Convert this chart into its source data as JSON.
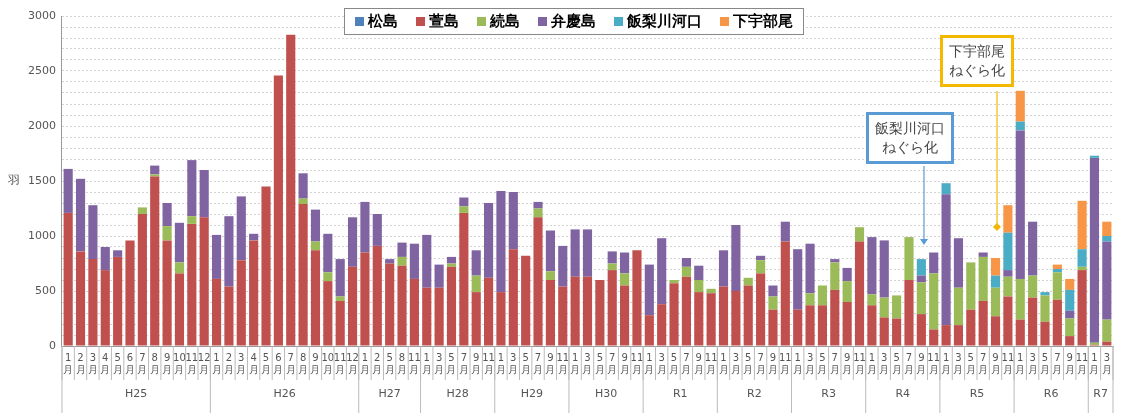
{
  "chart_data": {
    "type": "bar",
    "stacked": true,
    "ylabel": "羽",
    "legend": "top",
    "grid": "y",
    "categories": [
      "1月",
      "2月",
      "3月",
      "4月",
      "5月",
      "6月",
      "7月",
      "8月",
      "9月",
      "10月",
      "11月",
      "12月",
      "1月",
      "2月",
      "3月",
      "4月",
      "5月",
      "6月",
      "7月",
      "8月",
      "9月",
      "10月",
      "11月",
      "12月",
      "1月",
      "2月",
      "5月",
      "8月",
      "11月",
      "1月",
      "3月",
      "5月",
      "7月",
      "9月",
      "11月",
      "1月",
      "3月",
      "5月",
      "7月",
      "9月",
      "11月",
      "1月",
      "3月",
      "5月",
      "7月",
      "9月",
      "11月",
      "1月",
      "3月",
      "5月",
      "7月",
      "9月",
      "11月",
      "1月",
      "3月",
      "5月",
      "7月",
      "9月",
      "11月",
      "1月",
      "3月",
      "5月",
      "7月",
      "9月",
      "11月",
      "1月",
      "3月",
      "5月",
      "7月",
      "9月",
      "11月",
      "1月",
      "3月",
      "5月",
      "7月",
      "9月",
      "11月",
      "1月",
      "3月",
      "5月",
      "7月",
      "9月",
      "11月",
      "1月",
      "3月"
    ],
    "ylim": [
      0,
      3000
    ],
    "yticks": [
      0,
      {
        "value": 100,
        "label": null
      },
      {
        "value": 200,
        "label": null
      },
      {
        "value": 300,
        "label": null
      },
      {
        "value": 400,
        "label": null
      },
      500,
      {
        "value": 600,
        "label": null
      },
      {
        "value": 700,
        "label": null
      },
      {
        "value": 800,
        "label": null
      },
      {
        "value": 900,
        "label": null
      },
      1000,
      {
        "value": 1100,
        "label": null
      },
      {
        "value": 1200,
        "label": null
      },
      {
        "value": 1300,
        "label": null
      },
      {
        "value": 1400,
        "label": null
      },
      1500,
      {
        "value": 1600,
        "label": null
      },
      {
        "value": 1700,
        "label": null
      },
      {
        "value": 1800,
        "label": null
      },
      {
        "value": 1900,
        "label": null
      },
      2000,
      {
        "value": 2100,
        "label": null
      },
      {
        "value": 2200,
        "label": null
      },
      {
        "value": 2300,
        "label": null
      },
      {
        "value": 2400,
        "label": null
      },
      2500,
      {
        "value": 2600,
        "label": null
      },
      {
        "value": 2700,
        "label": null
      },
      {
        "value": 2800,
        "label": null
      },
      {
        "value": 2900,
        "label": null
      },
      3000
    ],
    "series": [
      {
        "name": "松島",
        "color": "#4f81bd",
        "values": [
          0,
          0,
          0,
          0,
          0,
          0,
          0,
          0,
          0,
          0,
          0,
          0,
          0,
          0,
          0,
          0,
          0,
          0,
          0,
          0,
          0,
          0,
          0,
          0,
          0,
          0,
          0,
          0,
          0,
          0,
          0,
          0,
          0,
          0,
          0,
          0,
          0,
          0,
          0,
          0,
          0,
          0,
          0,
          0,
          0,
          0,
          0,
          0,
          0,
          0,
          0,
          0,
          0,
          0,
          0,
          0,
          0,
          0,
          0,
          0,
          0,
          0,
          0,
          0,
          0,
          0,
          0,
          0,
          0,
          0,
          0,
          0,
          0,
          0,
          0,
          0,
          0,
          0,
          0,
          0,
          0,
          0,
          0,
          0,
          0
        ]
      },
      {
        "name": "萱島",
        "color": "#c0504d",
        "values": [
          1210,
          860,
          790,
          690,
          810,
          960,
          1200,
          1540,
          960,
          660,
          1110,
          1170,
          610,
          540,
          780,
          960,
          1450,
          2460,
          2830,
          1290,
          870,
          590,
          410,
          720,
          850,
          910,
          750,
          730,
          610,
          530,
          530,
          720,
          1210,
          490,
          620,
          490,
          880,
          820,
          1170,
          600,
          540,
          630,
          630,
          600,
          690,
          550,
          870,
          280,
          380,
          570,
          630,
          490,
          480,
          540,
          500,
          550,
          660,
          330,
          950,
          330,
          370,
          370,
          510,
          400,
          950,
          370,
          260,
          250,
          600,
          290,
          150,
          190,
          190,
          330,
          410,
          270,
          450,
          240,
          440,
          220,
          420,
          90,
          690,
          10,
          40
        ]
      },
      {
        "name": "続島",
        "color": "#9bbb59",
        "values": [
          0,
          0,
          0,
          0,
          0,
          0,
          60,
          20,
          130,
          100,
          70,
          0,
          0,
          0,
          0,
          0,
          0,
          0,
          0,
          50,
          80,
          80,
          40,
          0,
          0,
          0,
          0,
          80,
          0,
          0,
          0,
          30,
          60,
          150,
          0,
          0,
          0,
          0,
          80,
          80,
          0,
          0,
          0,
          0,
          60,
          110,
          0,
          0,
          0,
          30,
          90,
          110,
          40,
          0,
          0,
          70,
          120,
          120,
          0,
          0,
          110,
          180,
          250,
          190,
          130,
          100,
          180,
          210,
          390,
          290,
          510,
          0,
          340,
          430,
          400,
          260,
          180,
          370,
          200,
          240,
          250,
          160,
          30,
          20,
          200
        ]
      },
      {
        "name": "弁慶島",
        "color": "#8064a2",
        "values": [
          400,
          660,
          490,
          210,
          60,
          0,
          0,
          80,
          210,
          360,
          510,
          430,
          400,
          640,
          580,
          60,
          0,
          0,
          0,
          230,
          290,
          350,
          340,
          450,
          460,
          290,
          40,
          130,
          320,
          480,
          210,
          60,
          80,
          230,
          680,
          920,
          520,
          0,
          60,
          370,
          370,
          430,
          430,
          0,
          110,
          190,
          0,
          460,
          600,
          0,
          80,
          130,
          0,
          330,
          600,
          0,
          40,
          100,
          180,
          550,
          450,
          0,
          30,
          120,
          0,
          520,
          520,
          0,
          0,
          60,
          190,
          1190,
          450,
          0,
          40,
          0,
          60,
          1350,
          490,
          0,
          0,
          70,
          0,
          1680,
          710
        ]
      },
      {
        "name": "飯梨川河口",
        "color": "#4bacc6",
        "values": [
          0,
          0,
          0,
          0,
          0,
          0,
          0,
          0,
          0,
          0,
          0,
          0,
          0,
          0,
          0,
          0,
          0,
          0,
          0,
          0,
          0,
          0,
          0,
          0,
          0,
          0,
          0,
          0,
          0,
          0,
          0,
          0,
          0,
          0,
          0,
          0,
          0,
          0,
          0,
          0,
          0,
          0,
          0,
          0,
          0,
          0,
          0,
          0,
          0,
          0,
          0,
          0,
          0,
          0,
          0,
          0,
          0,
          0,
          0,
          0,
          0,
          0,
          0,
          0,
          0,
          0,
          0,
          0,
          0,
          150,
          0,
          100,
          0,
          0,
          0,
          110,
          340,
          80,
          0,
          30,
          30,
          190,
          160,
          20,
          50
        ]
      },
      {
        "name": "下宇部尾",
        "color": "#f79646",
        "values": [
          0,
          0,
          0,
          0,
          0,
          0,
          0,
          0,
          0,
          0,
          0,
          0,
          0,
          0,
          0,
          0,
          0,
          0,
          0,
          0,
          0,
          0,
          0,
          0,
          0,
          0,
          0,
          0,
          0,
          0,
          0,
          0,
          0,
          0,
          0,
          0,
          0,
          0,
          0,
          0,
          0,
          0,
          0,
          0,
          0,
          0,
          0,
          0,
          0,
          0,
          0,
          0,
          0,
          0,
          0,
          0,
          0,
          0,
          0,
          0,
          0,
          0,
          0,
          0,
          0,
          0,
          0,
          0,
          0,
          0,
          0,
          0,
          0,
          0,
          0,
          160,
          250,
          280,
          0,
          0,
          40,
          100,
          440,
          0,
          130
        ]
      }
    ],
    "annotations": [
      "H25",
      "H26",
      "H27",
      "H28",
      "H29",
      "H30",
      "R1",
      "R2",
      "R3",
      "R4",
      "R5",
      "R6",
      "R7",
      "飯梨川河口",
      "ねぐら化",
      "下宇部尾",
      "ねぐら化"
    ]
  }
}
